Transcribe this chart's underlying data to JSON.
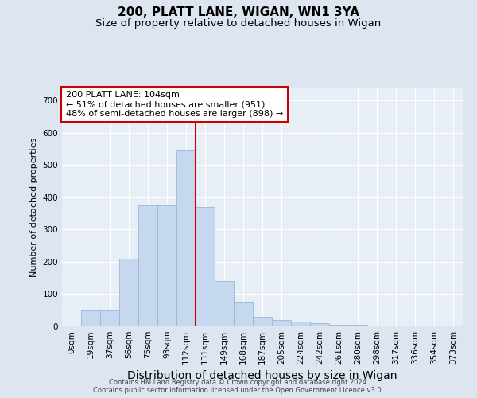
{
  "title1": "200, PLATT LANE, WIGAN, WN1 3YA",
  "title2": "Size of property relative to detached houses in Wigan",
  "xlabel": "Distribution of detached houses by size in Wigan",
  "ylabel": "Number of detached properties",
  "categories": [
    "0sqm",
    "19sqm",
    "37sqm",
    "56sqm",
    "75sqm",
    "93sqm",
    "112sqm",
    "131sqm",
    "149sqm",
    "168sqm",
    "187sqm",
    "205sqm",
    "224sqm",
    "242sqm",
    "261sqm",
    "280sqm",
    "298sqm",
    "317sqm",
    "336sqm",
    "354sqm",
    "373sqm"
  ],
  "values": [
    3,
    50,
    50,
    210,
    375,
    375,
    545,
    370,
    140,
    75,
    30,
    20,
    14,
    10,
    5,
    5,
    3,
    2,
    1,
    2,
    2
  ],
  "bar_color": "#c5d8ed",
  "bar_edge_color": "#9ab8d8",
  "vline_color": "#cc0000",
  "vline_position": 6.5,
  "annotation_text_line1": "200 PLATT LANE: 104sqm",
  "annotation_text_line2": "← 51% of detached houses are smaller (951)",
  "annotation_text_line3": "48% of semi-detached houses are larger (898) →",
  "ylim": [
    0,
    740
  ],
  "yticks": [
    0,
    100,
    200,
    300,
    400,
    500,
    600,
    700
  ],
  "bg_color": "#dde6f0",
  "plot_bg_color": "#e8eef6",
  "grid_color": "#ffffff",
  "footer1": "Contains HM Land Registry data © Crown copyright and database right 2024.",
  "footer2": "Contains public sector information licensed under the Open Government Licence v3.0.",
  "title1_fontsize": 11,
  "title2_fontsize": 9.5,
  "xlabel_fontsize": 10,
  "ylabel_fontsize": 8,
  "tick_fontsize": 7.5,
  "annot_fontsize": 8,
  "footer_fontsize": 6
}
